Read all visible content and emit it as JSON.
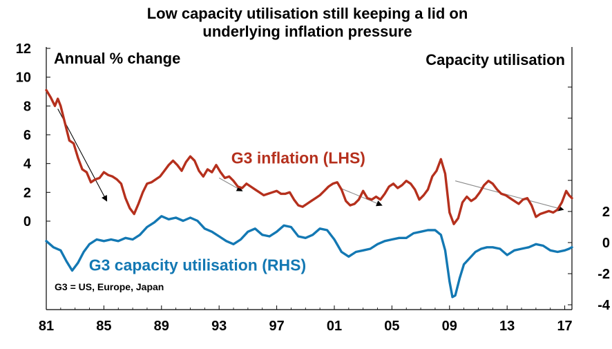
{
  "chart_data": {
    "type": "line",
    "title_lines": [
      "Low capacity utilisation still keeping a lid on",
      "underlying inflation pressure"
    ],
    "left_axis_title": "Annual % change",
    "right_axis_title": "Capacity  utilisation",
    "note": "G3 = US, Europe, Japan",
    "x_ticks": [
      "81",
      "85",
      "89",
      "93",
      "97",
      "01",
      "05",
      "09",
      "13",
      "17"
    ],
    "x_tick_years": [
      1981,
      1985,
      1989,
      1993,
      1997,
      2001,
      2005,
      2009,
      2013,
      2017
    ],
    "xlim": [
      1981,
      2017.5
    ],
    "left_ticks": [
      "12",
      "10",
      "8",
      "6",
      "4",
      "2",
      "0"
    ],
    "left_tick_values": [
      12,
      10,
      8,
      6,
      4,
      2,
      0
    ],
    "left_ylim": [
      0,
      12
    ],
    "right_ticks": [
      "2",
      "0",
      "-2",
      "-4"
    ],
    "right_tick_values": [
      2,
      0,
      -2,
      -4
    ],
    "right_ylim": [
      -4,
      11
    ],
    "colors": {
      "inflation": "#b5301d",
      "capacity": "#1378b3",
      "trend": "#000000"
    },
    "series": [
      {
        "name": "G3 inflation (LHS)",
        "axis": "left",
        "color": "#b5301d",
        "x": [
          1981.0,
          1981.3,
          1981.6,
          1981.8,
          1982.0,
          1982.3,
          1982.6,
          1982.9,
          1983.2,
          1983.5,
          1983.8,
          1984.1,
          1984.4,
          1984.7,
          1985.0,
          1985.3,
          1985.6,
          1985.9,
          1986.2,
          1986.5,
          1986.8,
          1987.1,
          1987.4,
          1987.7,
          1988.0,
          1988.3,
          1988.6,
          1988.9,
          1989.2,
          1989.5,
          1989.8,
          1990.1,
          1990.4,
          1990.7,
          1991.0,
          1991.3,
          1991.6,
          1991.9,
          1992.2,
          1992.5,
          1992.8,
          1993.1,
          1993.4,
          1993.7,
          1994.0,
          1994.3,
          1994.6,
          1994.9,
          1995.2,
          1995.5,
          1995.8,
          1996.1,
          1996.4,
          1996.7,
          1997.0,
          1997.3,
          1997.6,
          1997.9,
          1998.2,
          1998.5,
          1998.8,
          1999.1,
          1999.4,
          1999.7,
          2000.0,
          2000.3,
          2000.6,
          2000.9,
          2001.2,
          2001.5,
          2001.8,
          2002.1,
          2002.4,
          2002.7,
          2003.0,
          2003.3,
          2003.6,
          2003.9,
          2004.2,
          2004.5,
          2004.8,
          2005.1,
          2005.4,
          2005.7,
          2006.0,
          2006.3,
          2006.6,
          2006.9,
          2007.2,
          2007.5,
          2007.8,
          2008.1,
          2008.4,
          2008.7,
          2009.0,
          2009.3,
          2009.6,
          2009.9,
          2010.2,
          2010.5,
          2010.8,
          2011.1,
          2011.4,
          2011.7,
          2012.0,
          2012.3,
          2012.6,
          2012.9,
          2013.2,
          2013.5,
          2013.8,
          2014.1,
          2014.4,
          2014.7,
          2015.0,
          2015.3,
          2015.6,
          2015.9,
          2016.2,
          2016.5,
          2016.8,
          2017.1,
          2017.3,
          2017.5
        ],
        "values": [
          9.1,
          8.6,
          8.0,
          8.5,
          8.0,
          6.8,
          5.6,
          5.4,
          4.4,
          3.6,
          3.4,
          2.7,
          2.9,
          3.0,
          3.4,
          3.2,
          3.1,
          2.9,
          2.6,
          1.6,
          0.9,
          0.5,
          1.2,
          2.0,
          2.6,
          2.7,
          2.9,
          3.1,
          3.5,
          3.9,
          4.2,
          3.9,
          3.5,
          4.1,
          4.5,
          4.2,
          3.5,
          3.1,
          3.6,
          3.4,
          3.9,
          3.4,
          3.0,
          3.1,
          2.8,
          2.4,
          2.3,
          2.6,
          2.4,
          2.2,
          2.0,
          1.8,
          1.9,
          2.0,
          2.1,
          1.9,
          1.9,
          2.0,
          1.5,
          1.1,
          1.0,
          1.2,
          1.4,
          1.6,
          1.8,
          2.1,
          2.4,
          2.6,
          2.7,
          2.2,
          1.4,
          1.1,
          1.2,
          1.5,
          2.1,
          1.6,
          1.5,
          1.7,
          1.5,
          1.9,
          2.4,
          2.6,
          2.3,
          2.5,
          2.8,
          2.6,
          2.2,
          1.5,
          1.8,
          2.2,
          3.1,
          3.5,
          4.3,
          3.3,
          0.6,
          -0.2,
          0.2,
          1.3,
          1.7,
          1.4,
          1.6,
          2.0,
          2.5,
          2.8,
          2.6,
          2.2,
          1.9,
          1.8,
          1.6,
          1.4,
          1.2,
          1.5,
          1.6,
          1.1,
          0.3,
          0.5,
          0.6,
          0.7,
          0.6,
          0.8,
          1.3,
          2.1,
          1.8,
          1.6
        ]
      },
      {
        "name": "G3 capacity utilisation (RHS)",
        "axis": "right",
        "color": "#1378b3",
        "x": [
          1981.0,
          1981.5,
          1982.0,
          1982.4,
          1982.8,
          1983.2,
          1983.6,
          1984.0,
          1984.5,
          1985.0,
          1985.5,
          1986.0,
          1986.5,
          1987.0,
          1987.5,
          1988.0,
          1988.5,
          1989.0,
          1989.5,
          1990.0,
          1990.5,
          1991.0,
          1991.5,
          1992.0,
          1992.5,
          1993.0,
          1993.5,
          1994.0,
          1994.5,
          1995.0,
          1995.5,
          1996.0,
          1996.5,
          1997.0,
          1997.5,
          1998.0,
          1998.5,
          1999.0,
          1999.5,
          2000.0,
          2000.5,
          2001.0,
          2001.5,
          2002.0,
          2002.5,
          2003.0,
          2003.5,
          2004.0,
          2004.5,
          2005.0,
          2005.5,
          2006.0,
          2006.5,
          2007.0,
          2007.5,
          2008.0,
          2008.4,
          2008.7,
          2009.0,
          2009.2,
          2009.4,
          2009.7,
          2010.0,
          2010.4,
          2010.8,
          2011.2,
          2011.6,
          2012.0,
          2012.5,
          2013.0,
          2013.5,
          2014.0,
          2014.5,
          2015.0,
          2015.5,
          2016.0,
          2016.5,
          2017.0,
          2017.3,
          2017.5
        ],
        "values": [
          0.1,
          -0.3,
          -0.5,
          -1.2,
          -1.8,
          -1.3,
          -0.6,
          -0.1,
          0.2,
          0.1,
          0.2,
          0.1,
          0.3,
          0.2,
          0.5,
          1.0,
          1.3,
          1.7,
          1.5,
          1.6,
          1.4,
          1.6,
          1.4,
          0.9,
          0.7,
          0.4,
          0.1,
          -0.1,
          0.2,
          0.7,
          0.9,
          0.5,
          0.4,
          0.7,
          1.1,
          1.0,
          0.4,
          0.3,
          0.5,
          0.9,
          0.8,
          0.2,
          -0.6,
          -0.9,
          -0.6,
          -0.5,
          -0.4,
          -0.1,
          0.1,
          0.2,
          0.3,
          0.3,
          0.6,
          0.7,
          0.8,
          0.8,
          0.5,
          -0.5,
          -2.5,
          -3.5,
          -3.4,
          -2.3,
          -1.4,
          -1.0,
          -0.6,
          -0.4,
          -0.3,
          -0.3,
          -0.4,
          -0.8,
          -0.5,
          -0.4,
          -0.3,
          -0.1,
          -0.2,
          -0.5,
          -0.6,
          -0.5,
          -0.4,
          -0.3
        ]
      }
    ],
    "trend_lines": [
      {
        "axis": "left",
        "from": [
          1981.8,
          7.8
        ],
        "to": [
          1985.2,
          1.4
        ],
        "color": "#000000",
        "arrow": true
      },
      {
        "axis": "left",
        "from": [
          1993.0,
          3.0
        ],
        "to": [
          1994.6,
          2.1
        ],
        "color": "#8a8a8a",
        "arrow": true
      },
      {
        "axis": "left",
        "from": [
          2001.4,
          2.3
        ],
        "to": [
          2004.3,
          1.1
        ],
        "color": "#8a8a8a",
        "arrow": true
      },
      {
        "axis": "left",
        "from": [
          2009.4,
          2.8
        ],
        "to": [
          2016.9,
          0.8
        ],
        "color": "#8a8a8a",
        "arrow": true
      }
    ],
    "series_labels": [
      {
        "text": "G3 inflation (LHS)",
        "axis": "left",
        "x": 1998.5,
        "y": 4.0,
        "color": "#b5301d"
      },
      {
        "text": "G3 capacity utilisation (RHS)",
        "axis": "right",
        "x": 1991.5,
        "y": -1.8,
        "color": "#1378b3"
      }
    ],
    "legend": "none",
    "grid": false
  }
}
